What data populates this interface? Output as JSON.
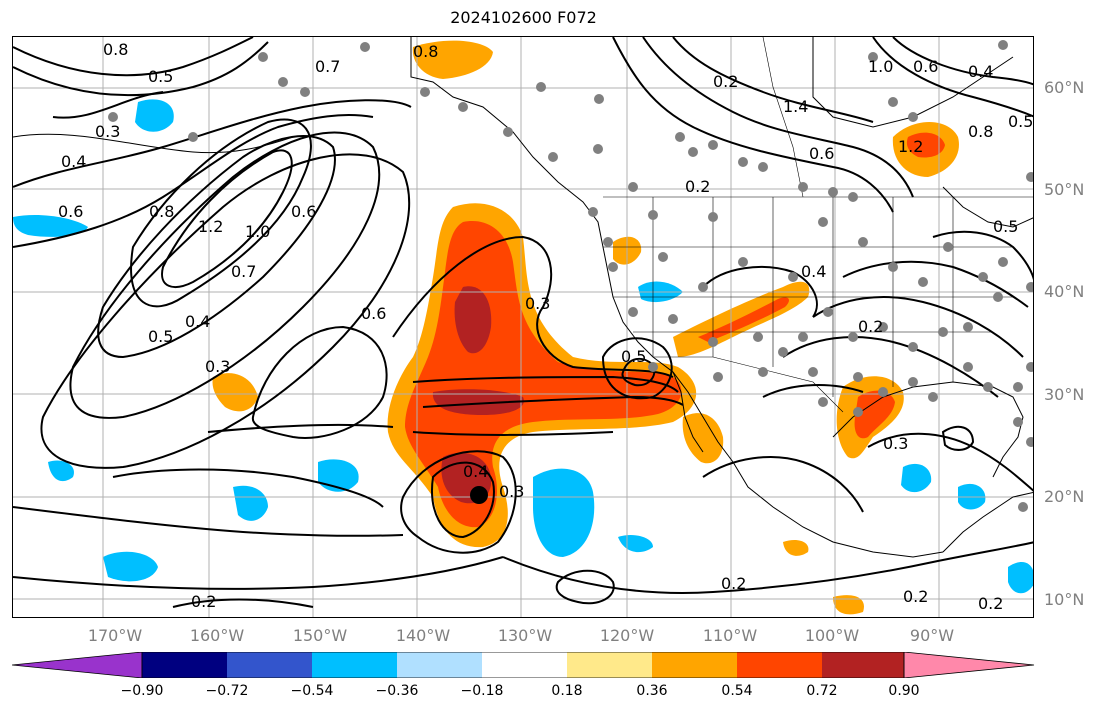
{
  "title": "2024102600 F072",
  "lat_labels": [
    "60°N",
    "50°N",
    "40°N",
    "30°N",
    "20°N",
    "10°N"
  ],
  "lon_labels": [
    "170°W",
    "160°W",
    "150°W",
    "140°W",
    "130°W",
    "120°W",
    "110°W",
    "100°W",
    "90°W"
  ],
  "colorbar": {
    "ticks": [
      "−0.90",
      "−0.72",
      "−0.54",
      "−0.36",
      "−0.18",
      "0.18",
      "0.36",
      "0.54",
      "0.72",
      "0.90"
    ],
    "colors": [
      "#9933cc",
      "#000080",
      "#3355cc",
      "#00bfff",
      "#b0e0ff",
      "#ffffff",
      "#ffe98a",
      "#ffa500",
      "#ff4500",
      "#b22222",
      "#ff88aa"
    ]
  },
  "contour_labels": [
    "0.8",
    "0.8",
    "0.7",
    "0.5",
    "0.3",
    "0.4",
    "0.6",
    "0.8",
    "1.2",
    "1.0",
    "0.7",
    "0.6",
    "0.5",
    "0.4",
    "0.3",
    "0.6",
    "0.3",
    "0.4",
    "0.3",
    "0.5",
    "0.2",
    "0.2",
    "0.2",
    "0.2",
    "1.4",
    "0.6",
    "1.0",
    "1.2",
    "0.6",
    "0.4",
    "0.5",
    "0.8",
    "0.5",
    "0.4",
    "0.2",
    "0.2",
    "0.3",
    "0.2"
  ],
  "colors": {
    "shade_orange": "#ffa500",
    "shade_redorange": "#ff4500",
    "shade_darkred": "#b22222",
    "shade_blue": "#00bfff",
    "marker_gray": "#808080"
  }
}
